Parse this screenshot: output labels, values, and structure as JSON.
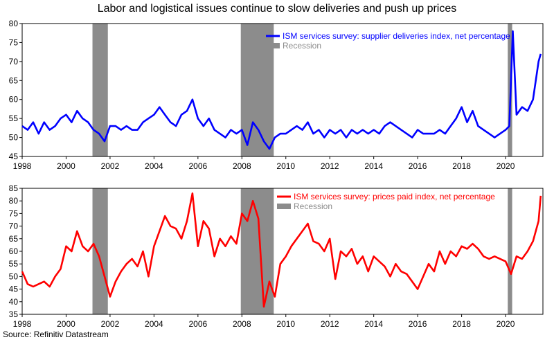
{
  "title": "Labor and logistical issues continue to slow deliveries and push up prices",
  "source": "Source: Refinitiv Datastream",
  "chart_data": [
    {
      "type": "line",
      "title": "",
      "xlabel": "",
      "ylabel": "",
      "xlim": [
        1998.0,
        2021.7
      ],
      "ylim": [
        45,
        80
      ],
      "yticks": [
        45,
        50,
        55,
        60,
        65,
        70,
        75,
        80
      ],
      "xticks": [
        1998,
        2000,
        2002,
        2004,
        2006,
        2008,
        2010,
        2012,
        2014,
        2016,
        2018,
        2020
      ],
      "grid": false,
      "legend": "top-right",
      "recessions": [
        [
          2001.2,
          2001.9
        ],
        [
          2007.95,
          2009.45
        ],
        [
          2020.1,
          2020.3
        ]
      ],
      "series": [
        {
          "name": "ISM services survey: supplier deliveries index, net percentage",
          "color": "#0000ff",
          "x": [
            1998.0,
            1998.25,
            1998.5,
            1998.75,
            1999.0,
            1999.25,
            1999.5,
            1999.75,
            2000.0,
            2000.25,
            2000.5,
            2000.75,
            2001.0,
            2001.25,
            2001.5,
            2001.75,
            2002.0,
            2002.25,
            2002.5,
            2002.75,
            2003.0,
            2003.25,
            2003.5,
            2003.75,
            2004.0,
            2004.25,
            2004.5,
            2004.75,
            2005.0,
            2005.25,
            2005.5,
            2005.75,
            2006.0,
            2006.25,
            2006.5,
            2006.75,
            2007.0,
            2007.25,
            2007.5,
            2007.75,
            2008.0,
            2008.25,
            2008.5,
            2008.75,
            2009.0,
            2009.25,
            2009.5,
            2009.75,
            2010.0,
            2010.25,
            2010.5,
            2010.75,
            2011.0,
            2011.25,
            2011.5,
            2011.75,
            2012.0,
            2012.25,
            2012.5,
            2012.75,
            2013.0,
            2013.25,
            2013.5,
            2013.75,
            2014.0,
            2014.25,
            2014.5,
            2014.75,
            2015.0,
            2015.25,
            2015.5,
            2015.75,
            2016.0,
            2016.25,
            2016.5,
            2016.75,
            2017.0,
            2017.25,
            2017.5,
            2017.75,
            2018.0,
            2018.25,
            2018.5,
            2018.75,
            2019.0,
            2019.25,
            2019.5,
            2019.75,
            2020.0,
            2020.17,
            2020.33,
            2020.5,
            2020.75,
            2021.0,
            2021.25,
            2021.5,
            2021.6
          ],
          "values": [
            53,
            52,
            54,
            51,
            54,
            52,
            53,
            55,
            56,
            54,
            57,
            55,
            54,
            52,
            51,
            49,
            53,
            53,
            52,
            53,
            52,
            52,
            54,
            55,
            56,
            58,
            56,
            54,
            53,
            56,
            57,
            60,
            55,
            53,
            55,
            52,
            51,
            50,
            52,
            51,
            52,
            48,
            54,
            52,
            49,
            47,
            50,
            51,
            51,
            52,
            53,
            52,
            54,
            51,
            52,
            50,
            52,
            51,
            52,
            50,
            52,
            51,
            52,
            51,
            52,
            51,
            53,
            54,
            53,
            52,
            51,
            50,
            52,
            51,
            51,
            51,
            52,
            51,
            53,
            55,
            58,
            54,
            57,
            53,
            52,
            51,
            50,
            51,
            52,
            53,
            78,
            56,
            58,
            57,
            60,
            70,
            72
          ]
        }
      ]
    },
    {
      "type": "line",
      "title": "",
      "xlabel": "",
      "ylabel": "",
      "xlim": [
        1998.0,
        2021.7
      ],
      "ylim": [
        35,
        85
      ],
      "yticks": [
        35,
        40,
        45,
        50,
        55,
        60,
        65,
        70,
        75,
        80,
        85
      ],
      "xticks": [
        1998,
        2000,
        2002,
        2004,
        2006,
        2008,
        2010,
        2012,
        2014,
        2016,
        2018,
        2020
      ],
      "grid": false,
      "legend": "top-right",
      "recessions": [
        [
          2001.2,
          2001.9
        ],
        [
          2007.95,
          2009.45
        ],
        [
          2020.1,
          2020.3
        ]
      ],
      "series": [
        {
          "name": "ISM services survey: prices paid index, net percentage",
          "color": "#ff0000",
          "x": [
            1998.0,
            1998.25,
            1998.5,
            1998.75,
            1999.0,
            1999.25,
            1999.5,
            1999.75,
            2000.0,
            2000.25,
            2000.5,
            2000.75,
            2001.0,
            2001.25,
            2001.5,
            2001.75,
            2002.0,
            2002.25,
            2002.5,
            2002.75,
            2003.0,
            2003.25,
            2003.5,
            2003.75,
            2004.0,
            2004.25,
            2004.5,
            2004.75,
            2005.0,
            2005.25,
            2005.5,
            2005.75,
            2006.0,
            2006.25,
            2006.5,
            2006.75,
            2007.0,
            2007.25,
            2007.5,
            2007.75,
            2008.0,
            2008.25,
            2008.5,
            2008.75,
            2009.0,
            2009.25,
            2009.5,
            2009.75,
            2010.0,
            2010.25,
            2010.5,
            2010.75,
            2011.0,
            2011.25,
            2011.5,
            2011.75,
            2012.0,
            2012.25,
            2012.5,
            2012.75,
            2013.0,
            2013.25,
            2013.5,
            2013.75,
            2014.0,
            2014.25,
            2014.5,
            2014.75,
            2015.0,
            2015.25,
            2015.5,
            2015.75,
            2016.0,
            2016.25,
            2016.5,
            2016.75,
            2017.0,
            2017.25,
            2017.5,
            2017.75,
            2018.0,
            2018.25,
            2018.5,
            2018.75,
            2019.0,
            2019.25,
            2019.5,
            2019.75,
            2020.0,
            2020.25,
            2020.5,
            2020.75,
            2021.0,
            2021.25,
            2021.5,
            2021.6
          ],
          "values": [
            52,
            47,
            46,
            47,
            48,
            46,
            50,
            53,
            62,
            60,
            68,
            62,
            60,
            63,
            58,
            50,
            42,
            48,
            52,
            55,
            57,
            54,
            60,
            50,
            62,
            68,
            74,
            70,
            69,
            65,
            72,
            83,
            62,
            72,
            69,
            58,
            65,
            62,
            66,
            63,
            75,
            72,
            80,
            73,
            38,
            48,
            42,
            55,
            58,
            62,
            65,
            68,
            71,
            64,
            63,
            60,
            65,
            49,
            60,
            58,
            61,
            55,
            58,
            52,
            58,
            56,
            54,
            50,
            55,
            52,
            51,
            48,
            45,
            50,
            55,
            52,
            60,
            55,
            60,
            58,
            62,
            61,
            63,
            61,
            58,
            57,
            58,
            57,
            56,
            51,
            58,
            57,
            60,
            64,
            72,
            82
          ]
        }
      ]
    }
  ]
}
